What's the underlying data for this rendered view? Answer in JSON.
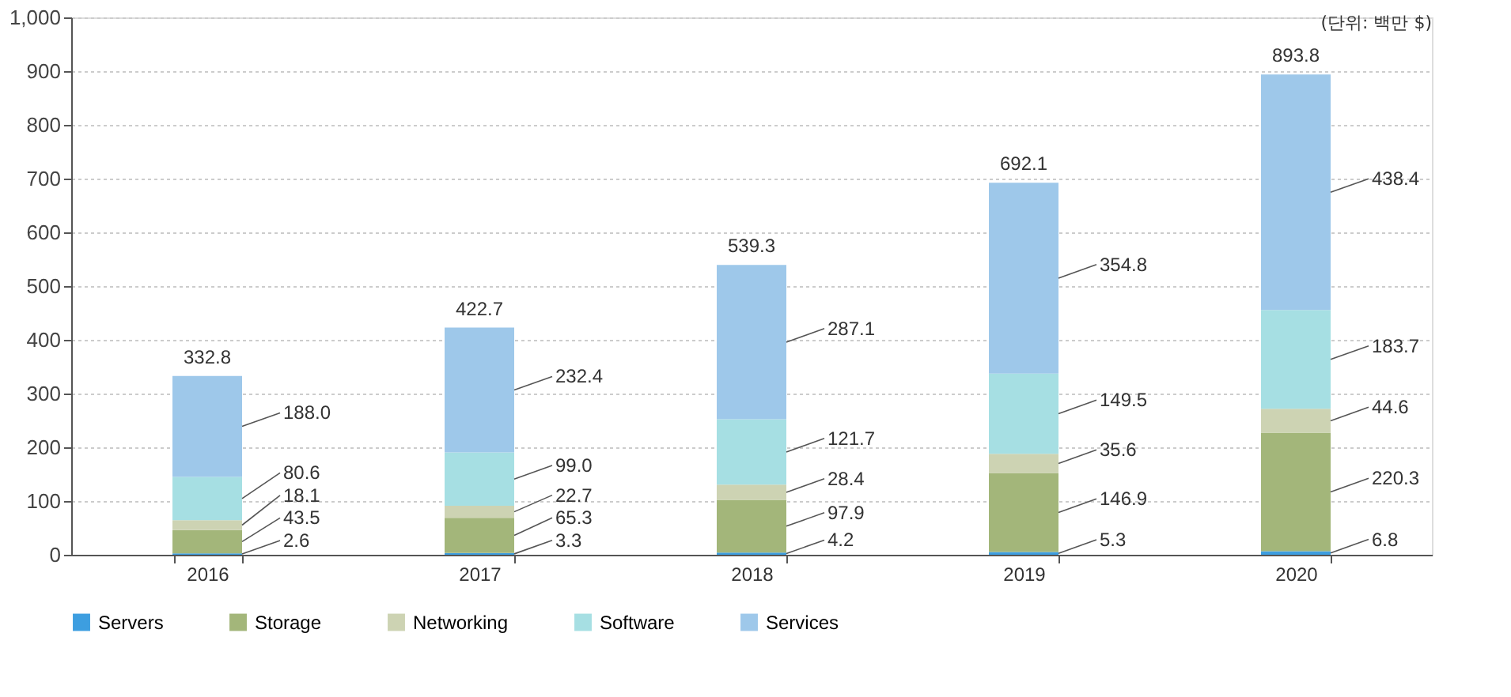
{
  "chart_data": {
    "type": "bar",
    "stacked": true,
    "categories": [
      "2016",
      "2017",
      "2018",
      "2019",
      "2020"
    ],
    "series": [
      {
        "name": "Servers",
        "color": "#3d9ee0",
        "values": [
          2.6,
          3.3,
          4.2,
          5.3,
          6.8
        ],
        "value_labels": [
          "2.6",
          "3.3",
          "4.2",
          "5.3",
          "6.8"
        ]
      },
      {
        "name": "Storage",
        "color": "#a3b67a",
        "values": [
          43.5,
          65.3,
          97.9,
          146.9,
          220.3
        ],
        "value_labels": [
          "43.5",
          "65.3",
          "97.9",
          "146.9",
          "220.3"
        ]
      },
      {
        "name": "Networking",
        "color": "#cdd3b3",
        "values": [
          18.1,
          22.7,
          28.4,
          35.6,
          44.6
        ],
        "value_labels": [
          "18.1",
          "22.7",
          "28.4",
          "35.6",
          "44.6"
        ]
      },
      {
        "name": "Software",
        "color": "#a6dfe3",
        "values": [
          80.6,
          99.0,
          121.7,
          149.5,
          183.7
        ],
        "value_labels": [
          "80.6",
          "99.0",
          "121.7",
          "149.5",
          "183.7"
        ]
      },
      {
        "name": "Services",
        "color": "#9ec8ea",
        "values": [
          188.0,
          232.4,
          287.1,
          354.8,
          438.4
        ],
        "value_labels": [
          "188.0",
          "232.4",
          "287.1",
          "354.8",
          "438.4"
        ]
      }
    ],
    "totals": [
      "332.8",
      "422.7",
      "539.3",
      "692.1",
      "893.8"
    ],
    "ylim": [
      0,
      1000
    ],
    "yticks": [
      0,
      100,
      200,
      300,
      400,
      500,
      600,
      700,
      800,
      900,
      {
        "value": 1000,
        "label": "1,000"
      }
    ],
    "grid": "y",
    "legend": "bottom",
    "annotations": [
      "(단위: 백만 $)"
    ]
  }
}
